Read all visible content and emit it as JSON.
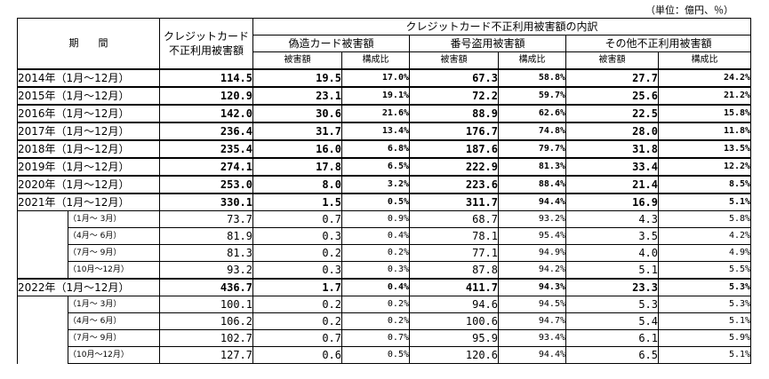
{
  "unit_note": "（単位：億円、％）",
  "header": {
    "period": "期　　間",
    "total": "クレジットカード不正利用被害額",
    "breakdown": "クレジットカード不正利用被害額の内訳",
    "counterfeit": "偽造カード被害額",
    "number_theft": "番号盗用被害額",
    "other": "その他不正利用被害額",
    "damage": "被害額",
    "ratio": "構成比"
  },
  "rows": [
    {
      "kind": "year",
      "period": "2014年（1月～12月）",
      "total": "114.5",
      "c_amt": "19.5",
      "c_pct": "17.0%",
      "n_amt": "67.3",
      "n_pct": "58.8%",
      "o_amt": "27.7",
      "o_pct": "24.2%"
    },
    {
      "kind": "year",
      "period": "2015年（1月～12月）",
      "total": "120.9",
      "c_amt": "23.1",
      "c_pct": "19.1%",
      "n_amt": "72.2",
      "n_pct": "59.7%",
      "o_amt": "25.6",
      "o_pct": "21.2%"
    },
    {
      "kind": "year",
      "period": "2016年（1月～12月）",
      "total": "142.0",
      "c_amt": "30.6",
      "c_pct": "21.6%",
      "n_amt": "88.9",
      "n_pct": "62.6%",
      "o_amt": "22.5",
      "o_pct": "15.8%"
    },
    {
      "kind": "year",
      "period": "2017年（1月～12月）",
      "total": "236.4",
      "c_amt": "31.7",
      "c_pct": "13.4%",
      "n_amt": "176.7",
      "n_pct": "74.8%",
      "o_amt": "28.0",
      "o_pct": "11.8%"
    },
    {
      "kind": "year",
      "period": "2018年（1月～12月）",
      "total": "235.4",
      "c_amt": "16.0",
      "c_pct": "6.8%",
      "n_amt": "187.6",
      "n_pct": "79.7%",
      "o_amt": "31.8",
      "o_pct": "13.5%"
    },
    {
      "kind": "year",
      "period": "2019年（1月～12月）",
      "total": "274.1",
      "c_amt": "17.8",
      "c_pct": "6.5%",
      "n_amt": "222.9",
      "n_pct": "81.3%",
      "o_amt": "33.4",
      "o_pct": "12.2%"
    },
    {
      "kind": "year",
      "period": "2020年（1月～12月）",
      "total": "253.0",
      "c_amt": "8.0",
      "c_pct": "3.2%",
      "n_amt": "223.6",
      "n_pct": "88.4%",
      "o_amt": "21.4",
      "o_pct": "8.5%"
    },
    {
      "kind": "year",
      "period": "2021年（1月～12月）",
      "total": "330.1",
      "c_amt": "1.5",
      "c_pct": "0.5%",
      "n_amt": "311.7",
      "n_pct": "94.4%",
      "o_amt": "16.9",
      "o_pct": "5.1%"
    },
    {
      "kind": "quarter",
      "period": "（1月～ 3月）",
      "total": "73.7",
      "c_amt": "0.7",
      "c_pct": "0.9%",
      "n_amt": "68.7",
      "n_pct": "93.2%",
      "o_amt": "4.3",
      "o_pct": "5.8%"
    },
    {
      "kind": "quarter",
      "period": "（4月～ 6月）",
      "total": "81.9",
      "c_amt": "0.3",
      "c_pct": "0.4%",
      "n_amt": "78.1",
      "n_pct": "95.4%",
      "o_amt": "3.5",
      "o_pct": "4.2%"
    },
    {
      "kind": "quarter",
      "period": "（7月～ 9月）",
      "total": "81.3",
      "c_amt": "0.2",
      "c_pct": "0.2%",
      "n_amt": "77.1",
      "n_pct": "94.9%",
      "o_amt": "4.0",
      "o_pct": "4.9%"
    },
    {
      "kind": "quarter",
      "period": "（10月～12月）",
      "total": "93.2",
      "c_amt": "0.3",
      "c_pct": "0.3%",
      "n_amt": "87.8",
      "n_pct": "94.2%",
      "o_amt": "5.1",
      "o_pct": "5.5%"
    },
    {
      "kind": "year",
      "period": "2022年（1月～12月）",
      "total": "436.7",
      "c_amt": "1.7",
      "c_pct": "0.4%",
      "n_amt": "411.7",
      "n_pct": "94.3%",
      "o_amt": "23.3",
      "o_pct": "5.3%"
    },
    {
      "kind": "quarter",
      "period": "（1月～ 3月）",
      "total": "100.1",
      "c_amt": "0.2",
      "c_pct": "0.2%",
      "n_amt": "94.6",
      "n_pct": "94.5%",
      "o_amt": "5.3",
      "o_pct": "5.3%"
    },
    {
      "kind": "quarter",
      "period": "（4月～ 6月）",
      "total": "106.2",
      "c_amt": "0.2",
      "c_pct": "0.2%",
      "n_amt": "100.6",
      "n_pct": "94.7%",
      "o_amt": "5.4",
      "o_pct": "5.1%"
    },
    {
      "kind": "quarter",
      "period": "（7月～ 9月）",
      "total": "102.7",
      "c_amt": "0.7",
      "c_pct": "0.7%",
      "n_amt": "95.9",
      "n_pct": "93.4%",
      "o_amt": "6.1",
      "o_pct": "5.9%"
    },
    {
      "kind": "quarter",
      "period": "（10月～12月）",
      "total": "127.7",
      "c_amt": "0.6",
      "c_pct": "0.5%",
      "n_amt": "120.6",
      "n_pct": "94.4%",
      "o_amt": "6.5",
      "o_pct": "5.1%"
    }
  ]
}
